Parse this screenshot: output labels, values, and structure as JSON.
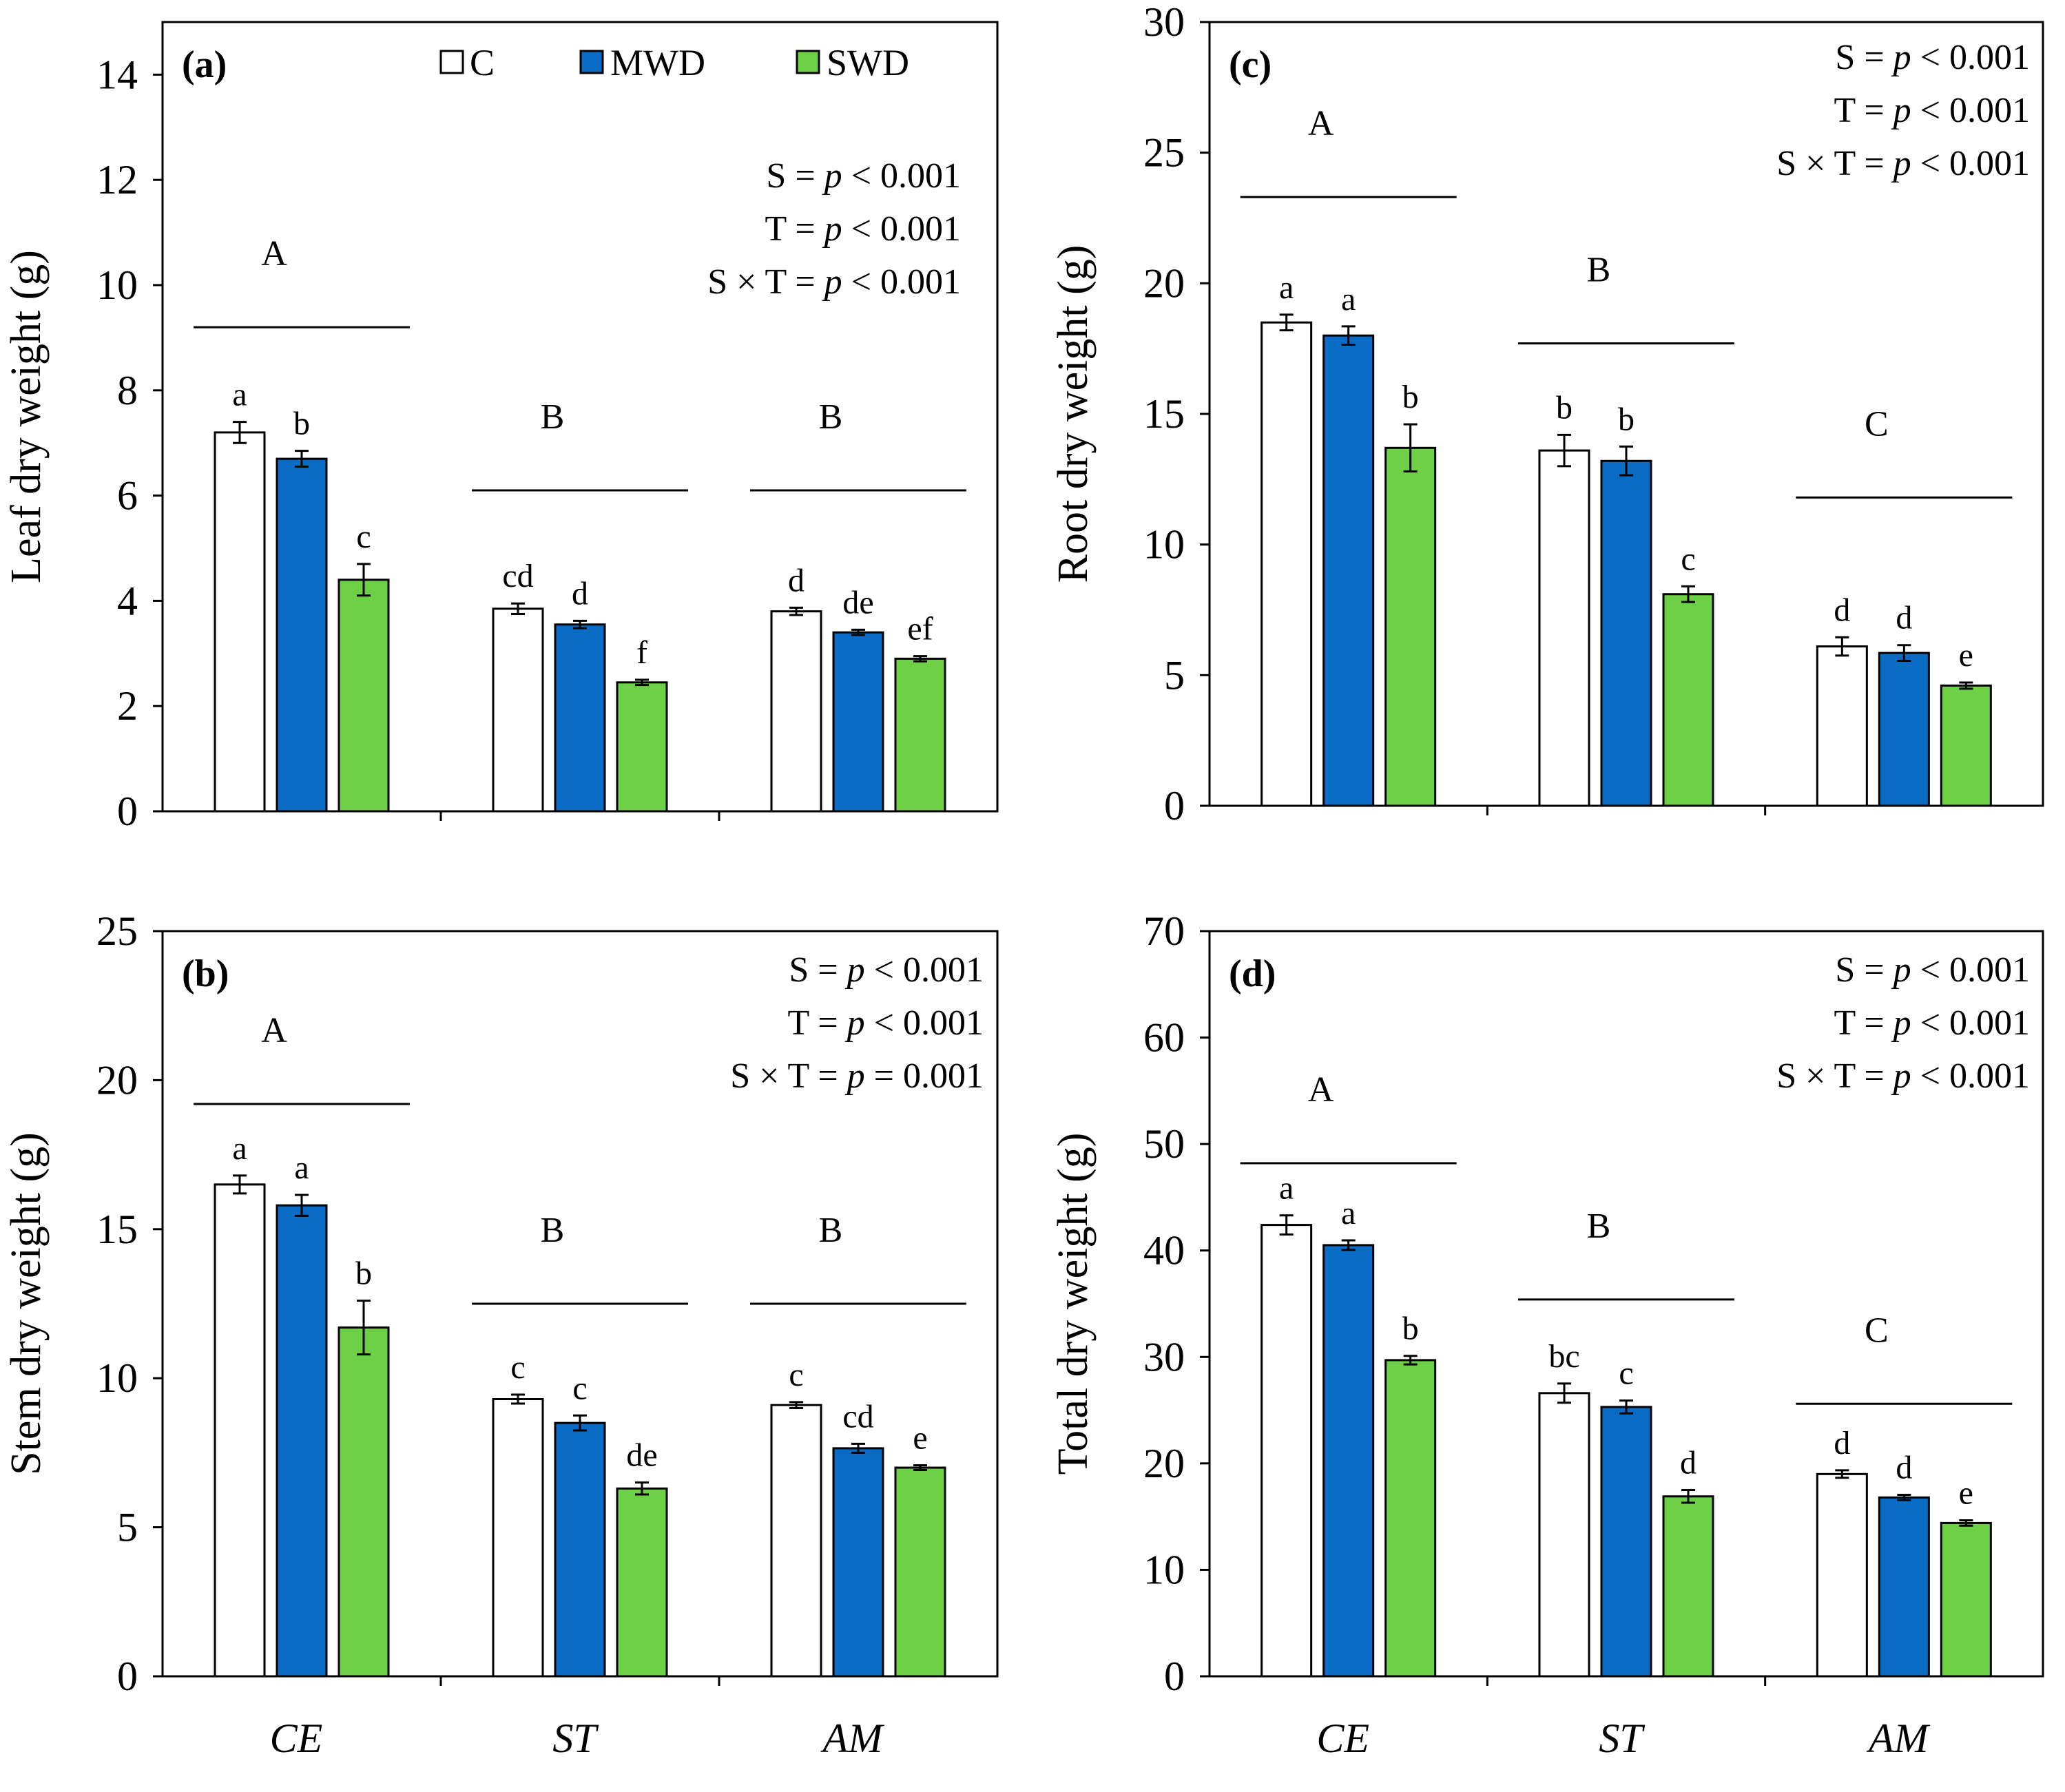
{
  "legend": [
    {
      "label": "C",
      "color": "#ffffff"
    },
    {
      "label": "MWD",
      "color": "#0a6cc4"
    },
    {
      "label": "SWD",
      "color": "#6dd046"
    }
  ],
  "chart_data": [
    {
      "id": "a",
      "type": "bar",
      "panel_label": "(a)",
      "ylabel": "Leaf dry weight (g)",
      "ylim": [
        0,
        15
      ],
      "yticks": [
        0,
        2,
        4,
        6,
        8,
        10,
        12,
        14
      ],
      "categories": [
        "CE",
        "ST",
        "AM"
      ],
      "series": [
        {
          "name": "C",
          "values": [
            7.2,
            3.85,
            3.8
          ],
          "errors": [
            0.2,
            0.1,
            0.07
          ]
        },
        {
          "name": "MWD",
          "values": [
            6.7,
            3.55,
            3.4
          ],
          "errors": [
            0.15,
            0.07,
            0.05
          ]
        },
        {
          "name": "SWD",
          "values": [
            4.4,
            2.45,
            2.9
          ],
          "errors": [
            0.3,
            0.05,
            0.05
          ]
        }
      ],
      "bar_letters": [
        [
          "a",
          "b",
          "c"
        ],
        [
          "cd",
          "d",
          "f"
        ],
        [
          "d",
          "de",
          "ef"
        ]
      ],
      "group_letters": [
        "A",
        "B",
        "B"
      ],
      "group_line_values": [
        9.2,
        6.1,
        6.1
      ],
      "stats": [
        {
          "prefix": "S = ",
          "p": "p",
          "suffix": " < 0.001"
        },
        {
          "prefix": "T = ",
          "p": "p",
          "suffix": " < 0.001"
        },
        {
          "prefix": "S × T = ",
          "p": "p",
          "suffix": " < 0.001"
        }
      ]
    },
    {
      "id": "b",
      "type": "bar",
      "panel_label": "(b)",
      "ylabel": "Stem dry weight (g)",
      "ylim": [
        0,
        25
      ],
      "yticks": [
        0,
        5,
        10,
        15,
        20,
        25
      ],
      "categories": [
        "CE",
        "ST",
        "AM"
      ],
      "series": [
        {
          "name": "C",
          "values": [
            16.5,
            9.3,
            9.1
          ],
          "errors": [
            0.3,
            0.15,
            0.1
          ]
        },
        {
          "name": "MWD",
          "values": [
            15.8,
            8.5,
            7.65
          ],
          "errors": [
            0.35,
            0.25,
            0.15
          ]
        },
        {
          "name": "SWD",
          "values": [
            11.7,
            6.3,
            7.0
          ],
          "errors": [
            0.9,
            0.2,
            0.08
          ]
        }
      ],
      "bar_letters": [
        [
          "a",
          "a",
          "b"
        ],
        [
          "c",
          "c",
          "de"
        ],
        [
          "c",
          "cd",
          "e"
        ]
      ],
      "group_letters": [
        "A",
        "B",
        "B"
      ],
      "group_line_values": [
        19.2,
        12.5,
        12.5
      ],
      "stats": [
        {
          "prefix": "S = ",
          "p": "p",
          "suffix": " < 0.001"
        },
        {
          "prefix": "T = ",
          "p": "p",
          "suffix": " < 0.001"
        },
        {
          "prefix": "S × T = ",
          "p": "p",
          "suffix": " = 0.001"
        }
      ]
    },
    {
      "id": "c",
      "type": "bar",
      "panel_label": "(c)",
      "ylabel": "Root dry weight (g)",
      "ylim": [
        0,
        30
      ],
      "yticks": [
        0,
        5,
        10,
        15,
        20,
        25,
        30
      ],
      "categories": [
        "CE",
        "ST",
        "AM"
      ],
      "series": [
        {
          "name": "C",
          "values": [
            18.5,
            13.6,
            6.1
          ],
          "errors": [
            0.3,
            0.6,
            0.35
          ]
        },
        {
          "name": "MWD",
          "values": [
            18.0,
            13.2,
            5.85
          ],
          "errors": [
            0.35,
            0.55,
            0.3
          ]
        },
        {
          "name": "SWD",
          "values": [
            13.7,
            8.1,
            4.6
          ],
          "errors": [
            0.9,
            0.3,
            0.12
          ]
        }
      ],
      "bar_letters": [
        [
          "a",
          "a",
          "b"
        ],
        [
          "b",
          "b",
          "c"
        ],
        [
          "d",
          "d",
          "e"
        ]
      ],
      "group_letters": [
        "A",
        "B",
        "C"
      ],
      "group_line_values": [
        23.3,
        17.7,
        11.8
      ],
      "stats": [
        {
          "prefix": "S = ",
          "p": "p",
          "suffix": " < 0.001"
        },
        {
          "prefix": "T = ",
          "p": "p",
          "suffix": " < 0.001"
        },
        {
          "prefix": "S × T = ",
          "p": "p",
          "suffix": " < 0.001"
        }
      ]
    },
    {
      "id": "d",
      "type": "bar",
      "panel_label": "(d)",
      "ylabel": "Total dry weight (g)",
      "ylim": [
        0,
        70
      ],
      "yticks": [
        0,
        10,
        20,
        30,
        40,
        50,
        60,
        70
      ],
      "categories": [
        "CE",
        "ST",
        "AM"
      ],
      "series": [
        {
          "name": "C",
          "values": [
            42.4,
            26.6,
            19.0
          ],
          "errors": [
            0.9,
            0.9,
            0.35
          ]
        },
        {
          "name": "MWD",
          "values": [
            40.5,
            25.3,
            16.8
          ],
          "errors": [
            0.45,
            0.6,
            0.25
          ]
        },
        {
          "name": "SWD",
          "values": [
            29.7,
            16.9,
            14.4
          ],
          "errors": [
            0.4,
            0.6,
            0.25
          ]
        }
      ],
      "bar_letters": [
        [
          "a",
          "a",
          "b"
        ],
        [
          "bc",
          "c",
          "d"
        ],
        [
          "d",
          "d",
          "e"
        ]
      ],
      "group_letters": [
        "A",
        "B",
        "C"
      ],
      "group_line_values": [
        48.2,
        35.4,
        25.6
      ],
      "stats": [
        {
          "prefix": "S = ",
          "p": "p",
          "suffix": " < 0.001"
        },
        {
          "prefix": "T = ",
          "p": "p",
          "suffix": " < 0.001"
        },
        {
          "prefix": "S × T = ",
          "p": "p",
          "suffix": " < 0.001"
        }
      ]
    }
  ]
}
